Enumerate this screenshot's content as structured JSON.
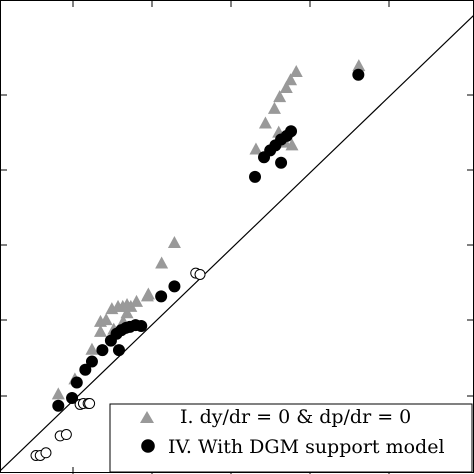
{
  "chart_data": {
    "type": "scatter",
    "xlim": [
      0,
      1
    ],
    "ylim": [
      0,
      1
    ],
    "grid": false,
    "legend_position": "bottom-right",
    "reference_line": {
      "x": [
        0,
        1
      ],
      "y": [
        0,
        1
      ]
    },
    "legend": {
      "entries": [
        {
          "series_index": 0,
          "text": "I. dy/dr = 0 & dp/dr = 0"
        },
        {
          "series_index": 1,
          "text": "IV. With DGM support model"
        }
      ]
    },
    "series": [
      {
        "name": "I. dy/dr = 0 & dp/dr = 0",
        "marker": "triangle",
        "color": "#999999",
        "points": [
          [
            0.123,
            0.168
          ],
          [
            0.158,
            0.201
          ],
          [
            0.194,
            0.266
          ],
          [
            0.212,
            0.305
          ],
          [
            0.212,
            0.327
          ],
          [
            0.224,
            0.331
          ],
          [
            0.236,
            0.355
          ],
          [
            0.249,
            0.36
          ],
          [
            0.259,
            0.36
          ],
          [
            0.268,
            0.364
          ],
          [
            0.268,
            0.346
          ],
          [
            0.276,
            0.36
          ],
          [
            0.288,
            0.371
          ],
          [
            0.26,
            0.327
          ],
          [
            0.24,
            0.301
          ],
          [
            0.24,
            0.31
          ],
          [
            0.311,
            0.383
          ],
          [
            0.313,
            0.387
          ],
          [
            0.341,
            0.455
          ],
          [
            0.368,
            0.5
          ],
          [
            0.54,
            0.705
          ],
          [
            0.56,
            0.762
          ],
          [
            0.579,
            0.794
          ],
          [
            0.59,
            0.82
          ],
          [
            0.604,
            0.84
          ],
          [
            0.613,
            0.857
          ],
          [
            0.625,
            0.875
          ],
          [
            0.588,
            0.742
          ],
          [
            0.601,
            0.72
          ],
          [
            0.616,
            0.714
          ],
          [
            0.757,
            0.888
          ]
        ]
      },
      {
        "name": "IV. With DGM support model",
        "marker": "circle",
        "color": "#000000",
        "points": [
          [
            0.123,
            0.143
          ],
          [
            0.152,
            0.16
          ],
          [
            0.162,
            0.194
          ],
          [
            0.18,
            0.222
          ],
          [
            0.194,
            0.24
          ],
          [
            0.216,
            0.265
          ],
          [
            0.234,
            0.286
          ],
          [
            0.246,
            0.301
          ],
          [
            0.256,
            0.309
          ],
          [
            0.266,
            0.314
          ],
          [
            0.274,
            0.316
          ],
          [
            0.286,
            0.32
          ],
          [
            0.298,
            0.318
          ],
          [
            0.251,
            0.265
          ],
          [
            0.34,
            0.383
          ],
          [
            0.368,
            0.405
          ],
          [
            0.538,
            0.645
          ],
          [
            0.557,
            0.688
          ],
          [
            0.57,
            0.703
          ],
          [
            0.581,
            0.714
          ],
          [
            0.593,
            0.727
          ],
          [
            0.605,
            0.735
          ],
          [
            0.614,
            0.745
          ],
          [
            0.593,
            0.676
          ],
          [
            0.756,
            0.869
          ]
        ]
      },
      {
        "name": "",
        "marker": "open-circle",
        "color": "#000000",
        "points": [
          [
            0.076,
            0.034
          ],
          [
            0.085,
            0.034
          ],
          [
            0.097,
            0.04
          ],
          [
            0.127,
            0.077
          ],
          [
            0.14,
            0.08
          ],
          [
            0.169,
            0.146
          ],
          [
            0.176,
            0.148
          ],
          [
            0.186,
            0.148
          ],
          [
            0.189,
            0.148
          ],
          [
            0.413,
            0.434
          ],
          [
            0.422,
            0.431
          ]
        ]
      }
    ]
  }
}
